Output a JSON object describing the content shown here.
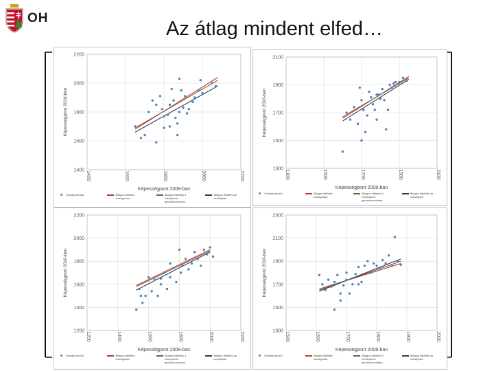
{
  "header": {
    "logo_text": "OH",
    "title": "Az átlag mindent elfed…"
  },
  "colors": {
    "point": "#4f81bd",
    "trend_school": "#c0392b",
    "trend_county": "#7a5c2e",
    "trend_class": "#2a3a5c",
    "grid": "#d8d8d8"
  },
  "icons": {
    "logo": "hungarian-coat-of-arms-icon"
  },
  "chart_data": [
    {
      "type": "scatter",
      "xlabel": "Képességpont 2008-ban",
      "ylabel": "Képességpont 2010-ben",
      "xlim": [
        1400,
        2200
      ],
      "ylim": [
        1400,
        2200
      ],
      "xticks": [
        "1400",
        "1600",
        "1800",
        "2000",
        "2200"
      ],
      "yticks": [
        "2200",
        "2000",
        "1800",
        "1600",
        "1400"
      ],
      "points": [
        [
          1650,
          1700
        ],
        [
          1680,
          1620
        ],
        [
          1700,
          1640
        ],
        [
          1720,
          1800
        ],
        [
          1740,
          1880
        ],
        [
          1760,
          1850
        ],
        [
          1780,
          1910
        ],
        [
          1790,
          1820
        ],
        [
          1800,
          1770
        ],
        [
          1800,
          1690
        ],
        [
          1820,
          1780
        ],
        [
          1830,
          1850
        ],
        [
          1840,
          1960
        ],
        [
          1850,
          1880
        ],
        [
          1860,
          1760
        ],
        [
          1870,
          1720
        ],
        [
          1870,
          1640
        ],
        [
          1880,
          1800
        ],
        [
          1890,
          1950
        ],
        [
          1900,
          1830
        ],
        [
          1920,
          1790
        ],
        [
          1930,
          1820
        ],
        [
          1950,
          1870
        ],
        [
          1960,
          1900
        ],
        [
          1980,
          1950
        ],
        [
          1990,
          2020
        ],
        [
          2000,
          1930
        ],
        [
          1760,
          1590
        ],
        [
          1880,
          2030
        ],
        [
          2050,
          2000
        ],
        [
          1830,
          1700
        ],
        [
          1910,
          1910
        ],
        [
          2070,
          1980
        ]
      ],
      "trends": [
        {
          "name": "Átlagos fejlődés országosan",
          "color": "#c0392b",
          "from": [
            1650,
            1680
          ],
          "to": [
            2080,
            2040
          ]
        },
        {
          "name": "Átlagos fejlődés 4 évfolyamos gimnáziumokban",
          "color": "#7a5c2e",
          "from": [
            1650,
            1690
          ],
          "to": [
            2080,
            2020
          ]
        },
        {
          "name": "Átlagos fejlődés az osztályban",
          "color": "#2a3a5c",
          "from": [
            1650,
            1660
          ],
          "to": [
            2080,
            1980
          ]
        }
      ],
      "legend": [
        "Osztály tanulói",
        "Átlagos fejlődés országosan",
        "Átlagos fejlődés 4 évfolyamos gimnáziumokban",
        "Átlagos fejlődés az osztályban"
      ]
    },
    {
      "type": "scatter",
      "xlabel": "Képességpont 2008-ban",
      "ylabel": "Képességpont 2010-ben",
      "xlim": [
        1300,
        2100
      ],
      "ylim": [
        1300,
        2100
      ],
      "xticks": [
        "1300",
        "1500",
        "1700",
        "1900",
        "2100"
      ],
      "yticks": [
        "2100",
        "1900",
        "1700",
        "1500",
        "1300"
      ],
      "points": [
        [
          1600,
          1420
        ],
        [
          1620,
          1700
        ],
        [
          1640,
          1650
        ],
        [
          1660,
          1740
        ],
        [
          1680,
          1620
        ],
        [
          1690,
          1880
        ],
        [
          1700,
          1790
        ],
        [
          1710,
          1720
        ],
        [
          1720,
          1560
        ],
        [
          1730,
          1680
        ],
        [
          1740,
          1850
        ],
        [
          1750,
          1810
        ],
        [
          1760,
          1760
        ],
        [
          1770,
          1720
        ],
        [
          1780,
          1650
        ],
        [
          1790,
          1830
        ],
        [
          1800,
          1800
        ],
        [
          1810,
          1870
        ],
        [
          1820,
          1790
        ],
        [
          1830,
          1580
        ],
        [
          1840,
          1720
        ],
        [
          1850,
          1900
        ],
        [
          1860,
          1880
        ],
        [
          1870,
          1910
        ],
        [
          1880,
          1920
        ],
        [
          1900,
          1920
        ],
        [
          1920,
          1950
        ],
        [
          1940,
          1930
        ],
        [
          1700,
          1500
        ],
        [
          1780,
          1830
        ]
      ],
      "trends": [
        {
          "name": "Átlagos fejlődés országosan",
          "color": "#c0392b",
          "from": [
            1600,
            1660
          ],
          "to": [
            1950,
            1960
          ]
        },
        {
          "name": "Átlagos fejlődés 4 évfolyamos gimnáziumokban",
          "color": "#7a5c2e",
          "from": [
            1600,
            1670
          ],
          "to": [
            1950,
            1950
          ]
        },
        {
          "name": "Átlagos fejlődés az osztályban",
          "color": "#2a3a5c",
          "from": [
            1600,
            1640
          ],
          "to": [
            1950,
            1940
          ]
        }
      ],
      "legend": [
        "Osztály tanulói",
        "Átlagos fejlődés országosan",
        "Átlagos fejlődés 4 évfolyamos gimnáziumokban",
        "Átlagos fejlődés az osztályban"
      ]
    },
    {
      "type": "scatter",
      "xlabel": "Képességpont 2008-ban",
      "ylabel": "Képességpont 2010-ben",
      "xlim": [
        1200,
        2200
      ],
      "ylim": [
        1200,
        2200
      ],
      "xticks": [
        "1200",
        "1400",
        "1600",
        "1800",
        "2000",
        "2200"
      ],
      "yticks": [
        "2200",
        "2000",
        "1800",
        "1600",
        "1400",
        "1200"
      ],
      "points": [
        [
          1520,
          1380
        ],
        [
          1540,
          1560
        ],
        [
          1560,
          1440
        ],
        [
          1580,
          1500
        ],
        [
          1600,
          1660
        ],
        [
          1620,
          1540
        ],
        [
          1640,
          1640
        ],
        [
          1660,
          1500
        ],
        [
          1680,
          1600
        ],
        [
          1700,
          1700
        ],
        [
          1720,
          1560
        ],
        [
          1740,
          1660
        ],
        [
          1760,
          1740
        ],
        [
          1780,
          1620
        ],
        [
          1800,
          1900
        ],
        [
          1810,
          1700
        ],
        [
          1820,
          1760
        ],
        [
          1840,
          1820
        ],
        [
          1860,
          1730
        ],
        [
          1880,
          1780
        ],
        [
          1900,
          1880
        ],
        [
          1920,
          1820
        ],
        [
          1940,
          1760
        ],
        [
          1960,
          1900
        ],
        [
          1980,
          1860
        ],
        [
          2000,
          1920
        ],
        [
          2020,
          1840
        ],
        [
          1680,
          1650
        ],
        [
          1740,
          1780
        ],
        [
          1550,
          1500
        ]
      ],
      "trends": [
        {
          "name": "Átlagos fejlődés országosan",
          "color": "#c0392b",
          "from": [
            1520,
            1590
          ],
          "to": [
            2000,
            1900
          ]
        },
        {
          "name": "Átlagos fejlődés 4 évfolyamos gimnáziumokban",
          "color": "#7a5c2e",
          "from": [
            1520,
            1580
          ],
          "to": [
            2000,
            1890
          ]
        },
        {
          "name": "Átlagos fejlődés az osztályban",
          "color": "#2a3a5c",
          "from": [
            1520,
            1550
          ],
          "to": [
            2000,
            1880
          ]
        }
      ],
      "legend": [
        "Osztály tanulói",
        "Átlagos fejlődés országosan",
        "Átlagos fejlődés 4 évfolyamos gimnáziumokban",
        "Átlagos fejlődés az osztályban"
      ]
    },
    {
      "type": "scatter",
      "xlabel": "Képességpont 2008-ban",
      "ylabel": "Képességpont 2010-ben",
      "xlim": [
        1500,
        2000
      ],
      "ylim": [
        1300,
        2300
      ],
      "xticks": [
        "1500",
        "1600",
        "1700",
        "1800",
        "1900",
        "2000"
      ],
      "yticks": [
        "2300",
        "2100",
        "1900",
        "1700",
        "1500",
        "1300"
      ],
      "points": [
        [
          1610,
          1780
        ],
        [
          1620,
          1700
        ],
        [
          1630,
          1650
        ],
        [
          1640,
          1740
        ],
        [
          1650,
          1680
        ],
        [
          1660,
          1720
        ],
        [
          1660,
          1480
        ],
        [
          1670,
          1780
        ],
        [
          1680,
          1620
        ],
        [
          1690,
          1690
        ],
        [
          1700,
          1740
        ],
        [
          1700,
          1800
        ],
        [
          1710,
          1620
        ],
        [
          1720,
          1700
        ],
        [
          1730,
          1790
        ],
        [
          1740,
          1850
        ],
        [
          1750,
          1720
        ],
        [
          1760,
          1860
        ],
        [
          1770,
          1900
        ],
        [
          1780,
          1800
        ],
        [
          1790,
          1880
        ],
        [
          1800,
          1860
        ],
        [
          1810,
          1840
        ],
        [
          1820,
          1910
        ],
        [
          1830,
          1880
        ],
        [
          1840,
          1950
        ],
        [
          1850,
          1860
        ],
        [
          1860,
          2110
        ],
        [
          1870,
          1900
        ],
        [
          1880,
          1870
        ],
        [
          1680,
          1560
        ],
        [
          1740,
          1700
        ]
      ],
      "trends": [
        {
          "name": "Átlagos fejlődés országosan",
          "color": "#c0392b",
          "from": [
            1610,
            1650
          ],
          "to": [
            1880,
            1900
          ]
        },
        {
          "name": "Átlagos fejlődés 4 évfolyamos gimnáziumokban",
          "color": "#7a5c2e",
          "from": [
            1610,
            1660
          ],
          "to": [
            1880,
            1880
          ]
        },
        {
          "name": "Átlagos fejlődés az osztályban",
          "color": "#2a3a5c",
          "from": [
            1610,
            1640
          ],
          "to": [
            1880,
            1920
          ]
        }
      ],
      "legend": [
        "Osztály tanulói",
        "Átlagos fejlődés országosan",
        "Átlagos fejlődés 4 évfolyamos gimnáziumokban",
        "Átlagos fejlődés az osztályban"
      ]
    }
  ]
}
